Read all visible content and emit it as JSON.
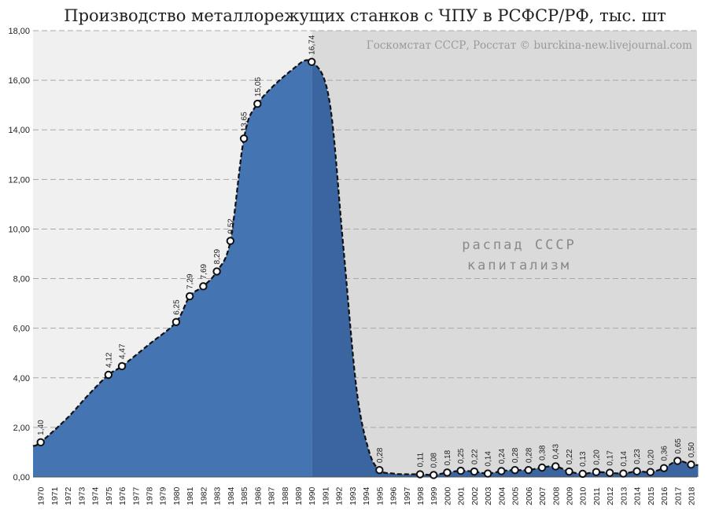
{
  "chart_data": {
    "type": "area",
    "title": "Производство металлорежущих станков с ЧПУ в РСФСР/РФ, тыс. шт",
    "source": "Госкомстат СССР, Росстат © burckina-new.livejournal.com",
    "annotation": [
      "распад СССР",
      "капитализм"
    ],
    "x": [
      1970,
      1971,
      1972,
      1973,
      1974,
      1975,
      1976,
      1977,
      1978,
      1979,
      1980,
      1981,
      1982,
      1983,
      1984,
      1985,
      1986,
      1987,
      1988,
      1989,
      1990,
      1991,
      1992,
      1993,
      1994,
      1995,
      1996,
      1997,
      1998,
      1999,
      2000,
      2001,
      2002,
      2003,
      2004,
      2005,
      2006,
      2007,
      2008,
      2009,
      2010,
      2011,
      2012,
      2013,
      2014,
      2015,
      2016,
      2017,
      2018
    ],
    "values": [
      1.4,
      null,
      null,
      null,
      null,
      4.12,
      4.47,
      null,
      null,
      null,
      6.25,
      7.29,
      7.69,
      8.29,
      9.52,
      13.65,
      15.05,
      null,
      null,
      null,
      16.74,
      null,
      null,
      null,
      null,
      0.28,
      null,
      null,
      0.11,
      0.08,
      0.18,
      0.25,
      0.22,
      0.14,
      0.24,
      0.28,
      0.28,
      0.38,
      0.43,
      0.22,
      0.13,
      0.2,
      0.17,
      0.14,
      0.23,
      0.2,
      0.36,
      0.65,
      0.5
    ],
    "value_labels": [
      "1,40",
      null,
      null,
      null,
      null,
      "4,12",
      "4,47",
      null,
      null,
      null,
      "6,25",
      "7,29",
      "7,69",
      "8,29",
      "9,52",
      "13,65",
      "15,05",
      null,
      null,
      null,
      "16,74",
      null,
      null,
      null,
      null,
      "0,28",
      null,
      null,
      "0,11",
      "0,08",
      "0,18",
      "0,25",
      "0,22",
      "0,14",
      "0,24",
      "0,28",
      "0,28",
      "0,38",
      "0,43",
      "0,22",
      "0,13",
      "0,20",
      "0,17",
      "0,14",
      "0,23",
      "0,20",
      "0,36",
      "0,65",
      "0,50"
    ],
    "y_ticks": [
      "0,00",
      "2,00",
      "4,00",
      "6,00",
      "8,00",
      "10,00",
      "12,00",
      "14,00",
      "16,00",
      "18,00"
    ],
    "ylim": [
      0,
      18
    ],
    "shaded_region_start": 1990,
    "grid": true,
    "colors": {
      "fill": "#4474b2",
      "fill_after": "#3b65a0",
      "plot_bg": "#f0f0f0",
      "shade_bg": "#dadada",
      "grid": "#a8a8a8",
      "line": "#111111",
      "marker_fill": "#ffffff"
    }
  }
}
